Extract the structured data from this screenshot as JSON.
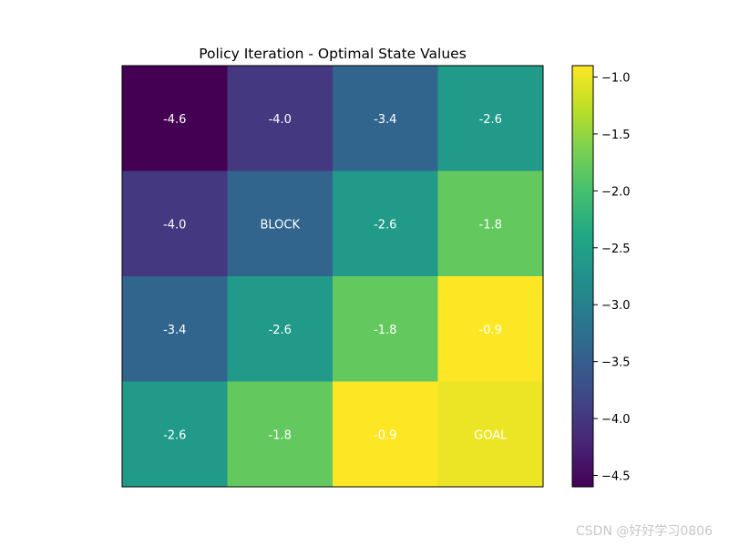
{
  "chart_data": {
    "type": "heatmap",
    "title": "Policy Iteration - Optimal State Values",
    "rows": 4,
    "cols": 4,
    "values": [
      [
        -4.6,
        -4.0,
        -3.4,
        -2.6
      ],
      [
        -4.0,
        null,
        -2.6,
        -1.8
      ],
      [
        -3.4,
        -2.6,
        -1.8,
        -0.9
      ],
      [
        -2.6,
        -1.8,
        -0.9,
        -1.0
      ]
    ],
    "cell_labels": [
      [
        "-4.6",
        "-4.0",
        "-3.4",
        "-2.6"
      ],
      [
        "-4.0",
        "BLOCK",
        "-2.6",
        "-1.8"
      ],
      [
        "-3.4",
        "-2.6",
        "-1.8",
        "-0.9"
      ],
      [
        "-2.6",
        "-1.8",
        "-0.9",
        "GOAL"
      ]
    ],
    "colormap": "viridis",
    "vmin": -4.6,
    "vmax": -0.9,
    "colorbar_ticks": [
      -1.0,
      -1.5,
      -2.0,
      -2.5,
      -3.0,
      -3.5,
      -4.0,
      -4.5
    ],
    "colorbar_tick_labels": [
      "−1.0",
      "−1.5",
      "−2.0",
      "−2.5",
      "−3.0",
      "−3.5",
      "−4.0",
      "−4.5"
    ],
    "grid": false,
    "legend": "none"
  },
  "watermark": "CSDN @好好学习0806"
}
